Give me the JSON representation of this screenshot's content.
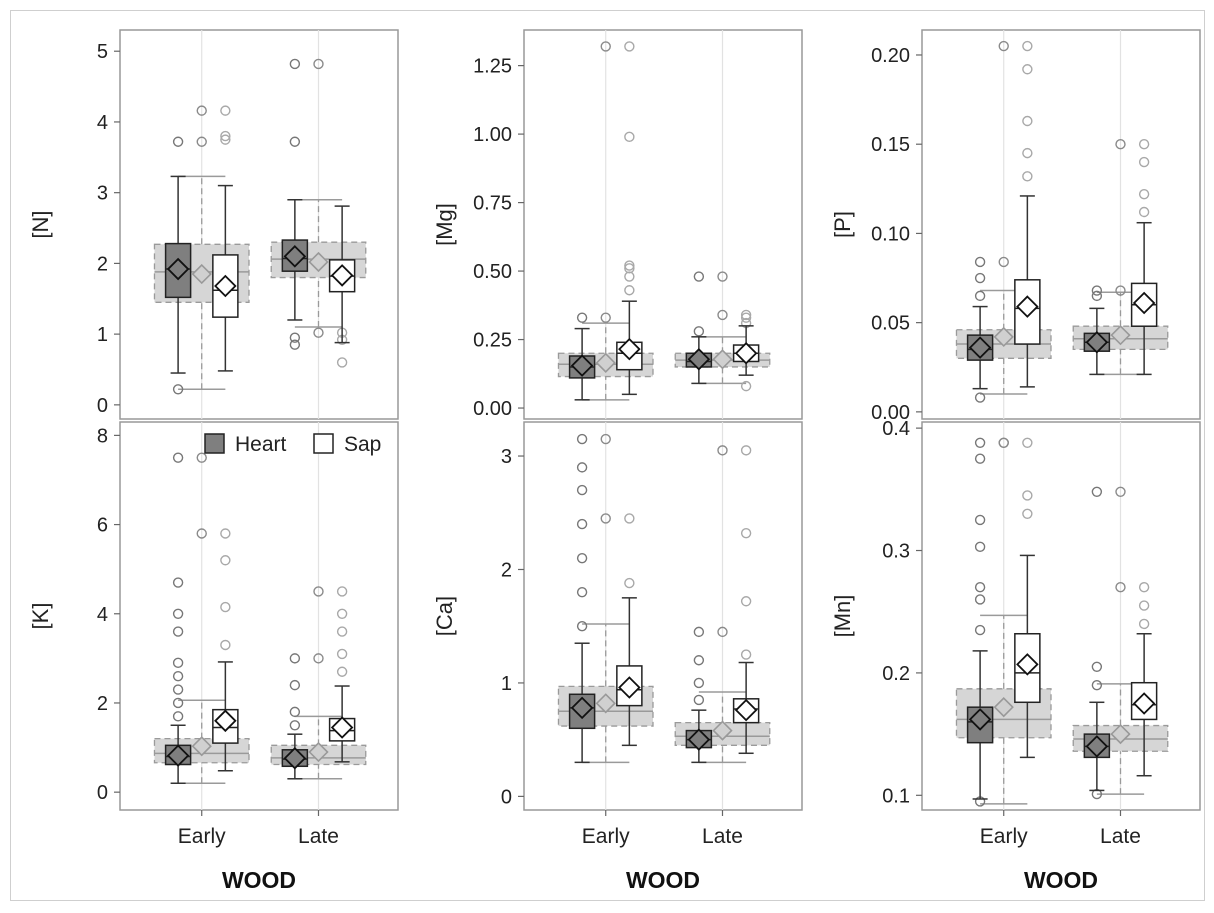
{
  "chart_data": {
    "type": "box",
    "layout": "3 columns x 2 rows of panels, shared x axis per column",
    "x_title": "WOOD",
    "categories": [
      "Early",
      "Late"
    ],
    "legend": {
      "position": "top-left of lower-left panel",
      "entries": [
        "Heart",
        "Sap"
      ]
    },
    "series": [
      {
        "name": "Heart",
        "color": "#7f7f7f"
      },
      {
        "name": "Sap",
        "color": "#ffffff"
      }
    ],
    "grid": false,
    "panels": [
      {
        "ylabel": "[N]",
        "ylim": [
          -0.2,
          5.3
        ],
        "ticks": [
          0,
          1,
          2,
          3,
          4,
          5
        ],
        "tick_labels": [
          "0",
          "1",
          "2",
          "3",
          "4",
          "5"
        ],
        "groups": [
          {
            "category": "Early",
            "combined": {
              "q1": 1.45,
              "median": 1.88,
              "q3": 2.27,
              "mean": 1.85,
              "whisker_low": 0.22,
              "whisker_high": 3.23
            },
            "Heart": {
              "min": 0.45,
              "q1": 1.52,
              "median": 1.92,
              "q3": 2.28,
              "max": 3.23,
              "mean": 1.92,
              "outliers": [
                0.22,
                3.72
              ]
            },
            "Sap": {
              "min": 0.48,
              "q1": 1.24,
              "median": 1.62,
              "q3": 2.12,
              "max": 3.1,
              "mean": 1.68,
              "outliers": [
                3.75,
                3.8,
                4.16
              ]
            }
          },
          {
            "category": "Late",
            "combined": {
              "q1": 1.8,
              "median": 2.06,
              "q3": 2.3,
              "mean": 2.02,
              "whisker_low": 1.1,
              "whisker_high": 2.9
            },
            "Heart": {
              "min": 1.2,
              "q1": 1.89,
              "median": 2.07,
              "q3": 2.33,
              "max": 2.9,
              "mean": 2.1,
              "outliers": [
                0.85,
                0.95,
                3.72,
                4.82
              ]
            },
            "Sap": {
              "min": 0.88,
              "q1": 1.6,
              "median": 1.82,
              "q3": 2.05,
              "max": 2.81,
              "mean": 1.83,
              "outliers": [
                0.6,
                0.92,
                1.02
              ]
            }
          }
        ]
      },
      {
        "ylabel": "[Mg]",
        "ylim": [
          -0.04,
          1.38
        ],
        "ticks": [
          0,
          0.25,
          0.5,
          0.75,
          1.0,
          1.25
        ],
        "tick_labels": [
          "0.00",
          "0.25",
          "0.50",
          "0.75",
          "1.00",
          "1.25"
        ],
        "groups": [
          {
            "category": "Early",
            "combined": {
              "q1": 0.115,
              "median": 0.16,
              "q3": 0.2,
              "mean": 0.165,
              "whisker_low": 0.03,
              "whisker_high": 0.31
            },
            "Heart": {
              "min": 0.03,
              "q1": 0.11,
              "median": 0.15,
              "q3": 0.19,
              "max": 0.29,
              "mean": 0.155,
              "outliers": [
                0.33
              ]
            },
            "Sap": {
              "min": 0.05,
              "q1": 0.14,
              "median": 0.2,
              "q3": 0.24,
              "max": 0.39,
              "mean": 0.215,
              "outliers": [
                0.43,
                0.48,
                0.51,
                0.52,
                0.99,
                1.32
              ]
            }
          },
          {
            "category": "Late",
            "combined": {
              "q1": 0.15,
              "median": 0.175,
              "q3": 0.2,
              "mean": 0.178,
              "whisker_low": 0.09,
              "whisker_high": 0.26
            },
            "Heart": {
              "min": 0.09,
              "q1": 0.15,
              "median": 0.17,
              "q3": 0.2,
              "max": 0.26,
              "mean": 0.178,
              "outliers": [
                0.28,
                0.48
              ]
            },
            "Sap": {
              "min": 0.12,
              "q1": 0.17,
              "median": 0.2,
              "q3": 0.23,
              "max": 0.3,
              "mean": 0.2,
              "outliers": [
                0.08,
                0.31,
                0.33,
                0.34
              ]
            }
          }
        ]
      },
      {
        "ylabel": "[P]",
        "ylim": [
          -0.004,
          0.214
        ],
        "ticks": [
          0,
          0.05,
          0.1,
          0.15,
          0.2
        ],
        "tick_labels": [
          "0.00",
          "0.05",
          "0.10",
          "0.15",
          "0.20"
        ],
        "groups": [
          {
            "category": "Early",
            "combined": {
              "q1": 0.03,
              "median": 0.038,
              "q3": 0.046,
              "mean": 0.042,
              "whisker_low": 0.01,
              "whisker_high": 0.068
            },
            "Heart": {
              "min": 0.013,
              "q1": 0.029,
              "median": 0.035,
              "q3": 0.043,
              "max": 0.059,
              "mean": 0.036,
              "outliers": [
                0.008,
                0.065,
                0.075,
                0.084
              ]
            },
            "Sap": {
              "min": 0.014,
              "q1": 0.038,
              "median": 0.058,
              "q3": 0.074,
              "max": 0.121,
              "mean": 0.059,
              "outliers": [
                0.132,
                0.145,
                0.163,
                0.192,
                0.205
              ]
            }
          },
          {
            "category": "Late",
            "combined": {
              "q1": 0.035,
              "median": 0.041,
              "q3": 0.048,
              "mean": 0.043,
              "whisker_low": 0.021,
              "whisker_high": 0.067
            },
            "Heart": {
              "min": 0.021,
              "q1": 0.034,
              "median": 0.039,
              "q3": 0.044,
              "max": 0.058,
              "mean": 0.039,
              "outliers": [
                0.065,
                0.068
              ]
            },
            "Sap": {
              "min": 0.021,
              "q1": 0.048,
              "median": 0.06,
              "q3": 0.072,
              "max": 0.106,
              "mean": 0.061,
              "outliers": [
                0.112,
                0.122,
                0.14,
                0.15
              ]
            }
          }
        ]
      },
      {
        "ylabel": "[K]",
        "ylim": [
          -0.4,
          8.3
        ],
        "ticks": [
          0,
          2,
          4,
          6,
          8
        ],
        "tick_labels": [
          "0",
          "2",
          "4",
          "6",
          "8"
        ],
        "groups": [
          {
            "category": "Early",
            "combined": {
              "q1": 0.66,
              "median": 0.87,
              "q3": 1.2,
              "mean": 1.03,
              "whisker_low": 0.2,
              "whisker_high": 2.06
            },
            "Heart": {
              "min": 0.2,
              "q1": 0.62,
              "median": 0.8,
              "q3": 1.05,
              "max": 1.5,
              "mean": 0.82,
              "outliers": [
                1.7,
                2.0,
                2.3,
                2.6,
                2.9,
                3.6,
                4.0,
                4.7,
                7.5
              ]
            },
            "Sap": {
              "min": 0.48,
              "q1": 1.1,
              "median": 1.45,
              "q3": 1.85,
              "max": 2.92,
              "mean": 1.6,
              "outliers": [
                3.3,
                4.15,
                5.2,
                5.8
              ]
            }
          },
          {
            "category": "Late",
            "combined": {
              "q1": 0.62,
              "median": 0.77,
              "q3": 1.05,
              "mean": 0.9,
              "whisker_low": 0.3,
              "whisker_high": 1.7
            },
            "Heart": {
              "min": 0.3,
              "q1": 0.58,
              "median": 0.74,
              "q3": 0.95,
              "max": 1.3,
              "mean": 0.76,
              "outliers": [
                1.5,
                1.8,
                2.4,
                3.0
              ]
            },
            "Sap": {
              "min": 0.68,
              "q1": 1.15,
              "median": 1.38,
              "q3": 1.65,
              "max": 2.38,
              "mean": 1.45,
              "outliers": [
                2.7,
                3.1,
                3.6,
                4.0,
                4.5
              ]
            }
          }
        ]
      },
      {
        "ylabel": "[Ca]",
        "ylim": [
          -0.12,
          3.3
        ],
        "ticks": [
          0,
          1,
          2,
          3
        ],
        "tick_labels": [
          "0",
          "1",
          "2",
          "3"
        ],
        "groups": [
          {
            "category": "Early",
            "combined": {
              "q1": 0.62,
              "median": 0.75,
              "q3": 0.97,
              "mean": 0.82,
              "whisker_low": 0.3,
              "whisker_high": 1.52
            },
            "Heart": {
              "min": 0.3,
              "q1": 0.6,
              "median": 0.78,
              "q3": 0.9,
              "max": 1.35,
              "mean": 0.78,
              "outliers": [
                1.5,
                1.8,
                2.1,
                2.4,
                2.7,
                2.9,
                3.15
              ]
            },
            "Sap": {
              "min": 0.45,
              "q1": 0.8,
              "median": 0.94,
              "q3": 1.15,
              "max": 1.75,
              "mean": 0.96,
              "outliers": [
                1.88,
                2.45
              ]
            }
          },
          {
            "category": "Late",
            "combined": {
              "q1": 0.45,
              "median": 0.53,
              "q3": 0.65,
              "mean": 0.58,
              "whisker_low": 0.3,
              "whisker_high": 0.92
            },
            "Heart": {
              "min": 0.3,
              "q1": 0.43,
              "median": 0.5,
              "q3": 0.58,
              "max": 0.76,
              "mean": 0.5,
              "outliers": [
                0.85,
                1.0,
                1.2,
                1.45
              ]
            },
            "Sap": {
              "min": 0.38,
              "q1": 0.65,
              "median": 0.77,
              "q3": 0.86,
              "max": 1.18,
              "mean": 0.76,
              "outliers": [
                1.25,
                1.72,
                2.32,
                3.05
              ]
            }
          }
        ]
      },
      {
        "ylabel": "[Mn]",
        "ylim": [
          0.088,
          0.405
        ],
        "ticks": [
          0.1,
          0.2,
          0.3,
          0.4
        ],
        "tick_labels": [
          "0.1",
          "0.2",
          "0.3",
          "0.4"
        ],
        "groups": [
          {
            "category": "Early",
            "combined": {
              "q1": 0.147,
              "median": 0.162,
              "q3": 0.187,
              "mean": 0.172,
              "whisker_low": 0.093,
              "whisker_high": 0.247
            },
            "Heart": {
              "min": 0.097,
              "q1": 0.143,
              "median": 0.16,
              "q3": 0.172,
              "max": 0.218,
              "mean": 0.162,
              "outliers": [
                0.095,
                0.235,
                0.26,
                0.27,
                0.303,
                0.325,
                0.375,
                0.388
              ]
            },
            "Sap": {
              "min": 0.131,
              "q1": 0.176,
              "median": 0.2,
              "q3": 0.232,
              "max": 0.296,
              "mean": 0.207,
              "outliers": [
                0.33,
                0.345,
                0.388
              ]
            }
          },
          {
            "category": "Late",
            "combined": {
              "q1": 0.136,
              "median": 0.146,
              "q3": 0.157,
              "mean": 0.15,
              "whisker_low": 0.101,
              "whisker_high": 0.191
            },
            "Heart": {
              "min": 0.104,
              "q1": 0.131,
              "median": 0.14,
              "q3": 0.15,
              "max": 0.176,
              "mean": 0.14,
              "outliers": [
                0.101,
                0.19,
                0.205,
                0.348
              ]
            },
            "Sap": {
              "min": 0.116,
              "q1": 0.162,
              "median": 0.174,
              "q3": 0.192,
              "max": 0.232,
              "mean": 0.175,
              "outliers": [
                0.24,
                0.255,
                0.27
              ]
            }
          }
        ]
      }
    ]
  }
}
